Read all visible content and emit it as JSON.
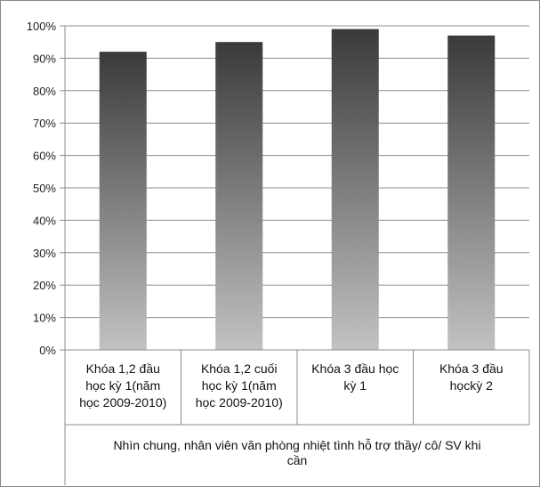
{
  "chart_data": {
    "type": "bar",
    "categories": [
      [
        "Khóa 1,2 đầu",
        "học kỳ 1(năm",
        "học 2009-2010)"
      ],
      [
        "Khóa 1,2 cuối",
        "học kỳ 1(năm",
        "học 2009-2010)"
      ],
      [
        "Khóa 3 đầu học",
        "kỳ 1"
      ],
      [
        "Khóa 3 đầu",
        "họckỳ 2"
      ]
    ],
    "values": [
      92,
      95,
      99,
      97
    ],
    "group_label": [
      "Nhìn chung, nhân viên văn phòng nhiệt tình hỗ trợ thầy/ cô/ SV khi",
      "cần"
    ],
    "yticks": [
      "0%",
      "10%",
      "20%",
      "30%",
      "40%",
      "50%",
      "60%",
      "70%",
      "80%",
      "90%",
      "100%"
    ],
    "ylim": [
      0,
      100
    ],
    "grid": true,
    "bar_gradient": {
      "top": "#3a3a3a",
      "bottom": "#c2c2c2"
    },
    "gridline_color": "#8c8c8c",
    "title": "",
    "xlabel": "",
    "ylabel": ""
  }
}
